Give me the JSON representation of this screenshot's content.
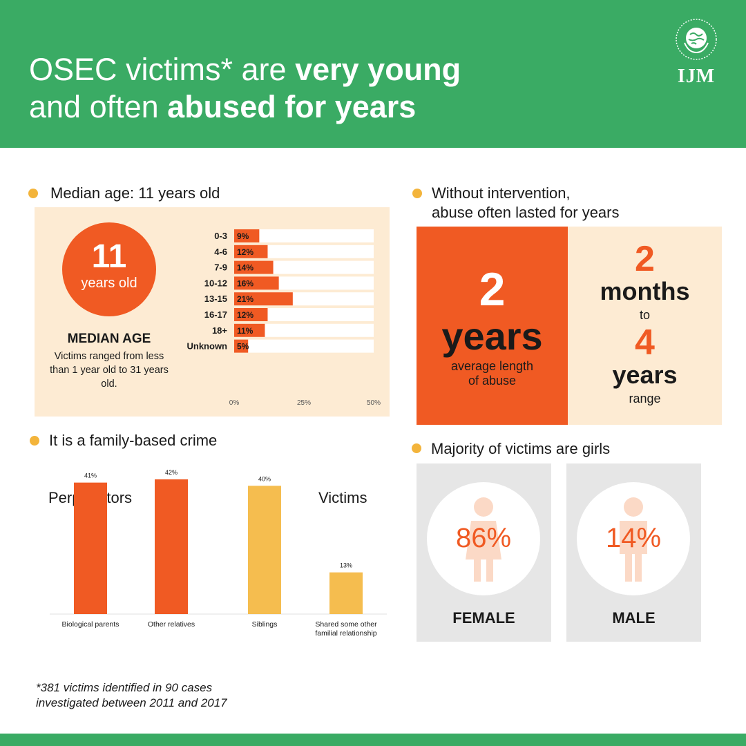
{
  "header": {
    "title_line1_regular": "OSEC victims* are ",
    "title_line1_bold": "very young",
    "title_line2_regular": "and often ",
    "title_line2_bold": "abused for years",
    "logo_text": "IJM",
    "bg_color": "#3aab64"
  },
  "median_section": {
    "heading": "Median age: 11 years old",
    "circle_number": "11",
    "circle_unit": "years old",
    "median_title": "MEDIAN AGE",
    "median_sub": "Victims ranged from less than 1 year old to 31 years old."
  },
  "duration_section": {
    "heading_line1": "Without intervention,",
    "heading_line2": "abuse often lasted for years",
    "avg_number": "2",
    "avg_word": "years",
    "avg_caption_line1": "average length",
    "avg_caption_line2": "of abuse",
    "range_from_number": "2",
    "range_from_word": "months",
    "range_to": "to",
    "range_to_number": "4",
    "range_to_word": "years",
    "range_caption": "range"
  },
  "family_section": {
    "heading": "It is a family-based crime",
    "perpetrators_label": "Perpetrators",
    "victims_label": "Victims"
  },
  "gender_section": {
    "heading": "Majority of victims are girls",
    "female_pct": "86%",
    "female_label": "FEMALE",
    "male_pct": "14%",
    "male_label": "MALE"
  },
  "footnote_line1": "*381 victims identified in 90 cases",
  "footnote_line2": "investigated between 2011 and 2017",
  "colors": {
    "orange": "#f05a23",
    "yellow": "#f5bd4f",
    "peach": "#fdebd3",
    "green": "#3aab64",
    "dot": "#f3b43b"
  },
  "chart_data": [
    {
      "type": "bar",
      "orientation": "horizontal",
      "categories": [
        "0-3",
        "4-6",
        "7-9",
        "10-12",
        "13-15",
        "16-17",
        "18+",
        "Unknown"
      ],
      "values": [
        9,
        12,
        14,
        16,
        21,
        12,
        11,
        5
      ],
      "data_labels": [
        "9%",
        "12%",
        "14%",
        "16%",
        "21%",
        "12%",
        "11%",
        "5%"
      ],
      "xlim": [
        0,
        50
      ],
      "x_ticks": [
        "0%",
        "25%",
        "50%"
      ],
      "color": "#f05a23"
    },
    {
      "type": "bar",
      "categories": [
        "Biological parents",
        "Other relatives"
      ],
      "values": [
        41,
        42
      ],
      "data_labels": [
        "41%",
        "42%"
      ],
      "group_label": "Perpetrators",
      "color": "#f05a23"
    },
    {
      "type": "bar",
      "categories": [
        "Siblings",
        "Shared some other familial relationship"
      ],
      "values": [
        40,
        13
      ],
      "data_labels": [
        "40%",
        "13%"
      ],
      "group_label": "Victims",
      "color": "#f5bd4f"
    },
    {
      "type": "pie",
      "categories": [
        "FEMALE",
        "MALE"
      ],
      "values": [
        86,
        14
      ]
    }
  ]
}
